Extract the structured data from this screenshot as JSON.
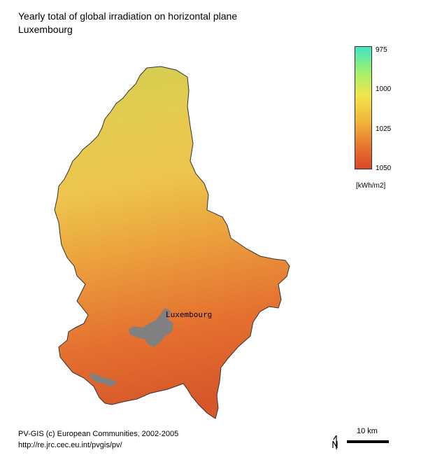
{
  "title": {
    "line1": "Yearly total of global irradiation on horizontal plane",
    "line2": "Luxembourg"
  },
  "legend": {
    "ticks": [
      "975",
      "1000",
      "1025",
      "1050"
    ],
    "unit": "[kWh/m2]",
    "colors": {
      "low": "#3fe7c4",
      "mid_low": "#a8ef6a",
      "mid": "#f2e64b",
      "mid_high": "#f1b33a",
      "high": "#d9482a"
    }
  },
  "map": {
    "city_label": "Luxembourg",
    "urban_color": "#808080"
  },
  "credits": {
    "line1": "PV-GIS (c) European Communities, 2002-2005",
    "line2": "http://re.jrc.cec.eu.int/pvgis/pv/"
  },
  "scale": {
    "label": "10 km"
  },
  "icons": {
    "north": "north-arrow-icon"
  }
}
